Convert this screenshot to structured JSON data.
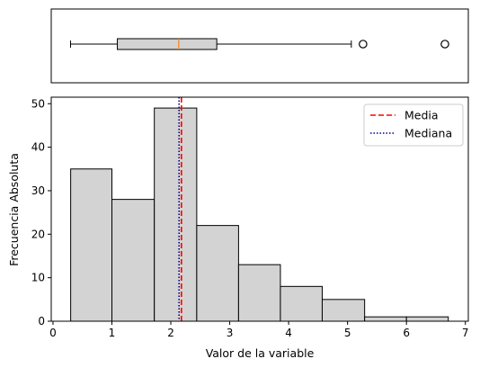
{
  "chart_data": [
    {
      "type": "boxplot",
      "orientation": "horizontal",
      "whisker_low": 0.3,
      "q1": 1.1,
      "median": 2.15,
      "q3": 2.8,
      "whisker_high": 5.1,
      "outliers": [
        5.3,
        6.7
      ],
      "xlim": [
        -0.03,
        7.1
      ],
      "box_color": "#d3d3d3",
      "median_color": "#ff7f0e"
    },
    {
      "type": "histogram",
      "xlabel": "Valor de la variable",
      "ylabel": "Frecuencia Absoluta",
      "bin_edges": [
        0.3,
        1.0,
        1.72,
        2.44,
        3.15,
        3.86,
        4.57,
        5.29,
        6.0,
        6.71
      ],
      "values": [
        35,
        28,
        49,
        22,
        13,
        8,
        5,
        1,
        1
      ],
      "xlim": [
        -0.03,
        7.05
      ],
      "ylim": [
        0,
        51.5
      ],
      "xticks": [
        "0",
        "1",
        "2",
        "3",
        "4",
        "5",
        "6",
        "7"
      ],
      "yticks": [
        "0",
        "10",
        "20",
        "30",
        "40",
        "50"
      ],
      "bar_color": "#d3d3d3",
      "lines": [
        {
          "name": "Media",
          "x": 2.18,
          "color": "#ff0000",
          "style": "dashed"
        },
        {
          "name": "Mediana",
          "x": 2.14,
          "color": "#00008b",
          "style": "dotted"
        }
      ],
      "legend": {
        "position": "top-right",
        "entries": [
          "Media",
          "Mediana"
        ]
      }
    }
  ]
}
